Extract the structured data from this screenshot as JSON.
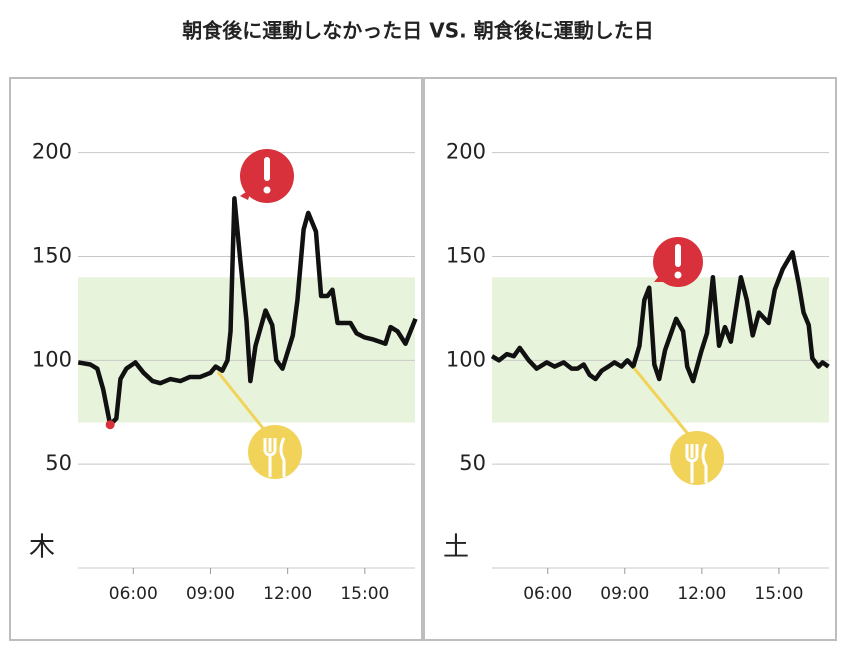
{
  "title": "朝食後に運動しなかった日 VS. 朝食後に運動した日",
  "chart_data": [
    {
      "type": "line",
      "label": "木",
      "x": [
        3.86,
        4.33,
        4.6,
        4.83,
        5.1,
        5.34,
        5.5,
        5.73,
        6.08,
        6.4,
        6.75,
        7.05,
        7.44,
        7.83,
        8.2,
        8.6,
        9.0,
        9.2,
        9.46,
        9.66,
        9.78,
        9.93,
        10.16,
        10.4,
        10.55,
        10.75,
        11.14,
        11.4,
        11.56,
        11.8,
        12.2,
        12.38,
        12.62,
        12.8,
        13.1,
        13.3,
        13.55,
        13.74,
        13.94,
        14.25,
        14.44,
        14.68,
        15.0,
        15.34,
        15.8,
        16.0,
        16.27,
        16.58,
        16.97
      ],
      "series": [
        {
          "color": "#111111",
          "values": [
            99,
            98,
            96,
            86,
            69,
            72,
            91,
            96,
            99,
            94,
            90,
            89,
            91,
            90,
            92,
            92,
            94,
            97,
            95,
            100,
            114,
            178,
            148,
            119,
            90,
            107,
            124,
            117,
            100,
            96,
            112,
            129,
            163,
            171,
            162,
            131,
            131,
            134,
            118,
            118,
            118,
            113,
            111,
            110,
            108,
            116,
            114,
            108,
            120
          ]
        }
      ],
      "low_color": "#d9313b",
      "band": {
        "range": [
          70,
          140
        ],
        "color": "#e8f3dc"
      },
      "xlim": [
        3.85,
        16.95
      ],
      "ylim": [
        0,
        235
      ],
      "xticks": [
        {
          "value": 6,
          "label": "06:00"
        },
        {
          "value": 9,
          "label": "09:00"
        },
        {
          "value": 12,
          "label": "12:00"
        },
        {
          "value": 15,
          "label": "15:00"
        }
      ],
      "yticks": [
        50,
        100,
        150,
        200
      ],
      "grid": true
    },
    {
      "type": "line",
      "label": "土",
      "x": [
        3.83,
        4.1,
        4.41,
        4.68,
        4.91,
        5.26,
        5.57,
        5.96,
        6.27,
        6.62,
        6.93,
        7.16,
        7.4,
        7.63,
        7.86,
        8.1,
        8.36,
        8.6,
        8.87,
        9.1,
        9.33,
        9.57,
        9.76,
        9.95,
        10.15,
        10.34,
        10.57,
        11.0,
        11.27,
        11.43,
        11.66,
        11.97,
        12.2,
        12.43,
        12.67,
        12.9,
        13.13,
        13.52,
        13.75,
        13.98,
        14.22,
        14.6,
        14.84,
        15.15,
        15.53,
        15.77,
        15.96,
        16.16,
        16.3,
        16.54,
        16.7,
        16.93
      ],
      "series": [
        {
          "color": "#111111",
          "values": [
            102,
            100,
            103,
            102,
            106,
            100,
            96,
            99,
            97,
            99,
            96,
            96,
            98,
            93,
            91,
            95,
            97,
            99,
            97,
            100,
            97,
            107,
            129,
            135,
            98,
            91,
            105,
            120,
            114,
            97,
            90,
            104,
            113,
            140,
            107,
            116,
            109,
            140,
            129,
            112,
            123,
            118,
            134,
            144,
            152,
            137,
            123,
            117,
            101,
            97,
            99,
            97
          ]
        }
      ],
      "band": {
        "range": [
          70,
          140
        ],
        "color": "#e8f3dc"
      },
      "xlim": [
        3.83,
        16.95
      ],
      "ylim": [
        0,
        235
      ],
      "xticks": [
        {
          "value": 6,
          "label": "06:00"
        },
        {
          "value": 9,
          "label": "09:00"
        },
        {
          "value": 12,
          "label": "12:00"
        },
        {
          "value": 15,
          "label": "15:00"
        }
      ],
      "yticks": [
        50,
        100,
        150,
        200
      ],
      "grid": true
    }
  ]
}
